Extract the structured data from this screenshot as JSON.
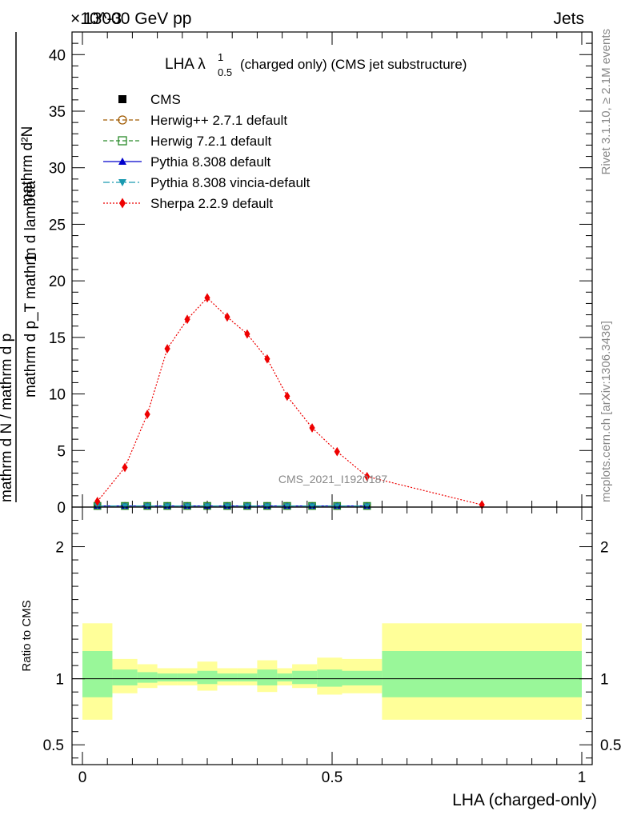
{
  "header": {
    "left": "13000 GeV pp",
    "right": "Jets",
    "exponent": "×10^-3"
  },
  "side_labels": {
    "rivet": "Rivet 3.1.10, ≥ 2.1M events",
    "mcplots": "mcplots.cern.ch [arXiv:1306.3436]"
  },
  "chart_data": {
    "type": "line",
    "title": "LHA λ^1_0.5 (charged only) (CMS jet substructure)",
    "title_parts": {
      "main": "LHA λ",
      "sup": "1",
      "sub": "0.5",
      "rest": "(charged only) (CMS jet substructure)"
    },
    "watermark": "CMS_2021_I1920187",
    "xlabel": "LHA (charged-only)",
    "ylabel_parts": {
      "one": "1",
      "den": "mathrm d N / mathrm d p",
      "num_right": "mathrm d²N",
      "den_right": "mathrm d p_T mathrm d lambda"
    },
    "ratio_ylabel": "Ratio to CMS",
    "xlim": [
      0,
      1
    ],
    "ylim": [
      0,
      42
    ],
    "y_scale_exponent": -3,
    "y_ticks": [
      0,
      5,
      10,
      15,
      20,
      25,
      30,
      35,
      40
    ],
    "x_ticks": [
      0,
      0.5,
      1
    ],
    "x_tick_labels": [
      "0",
      "0.5",
      "1"
    ],
    "ratio_ylim": [
      0.35,
      2.3
    ],
    "ratio_ticks": [
      0.5,
      1,
      2
    ],
    "ratio_tick_labels": [
      "0.5",
      "1",
      "2"
    ],
    "legend_placement": "top-left",
    "x_edges": [
      0.0,
      0.06,
      0.11,
      0.15,
      0.19,
      0.23,
      0.27,
      0.31,
      0.35,
      0.39,
      0.42,
      0.47,
      0.52,
      0.6,
      1.0
    ],
    "series": [
      {
        "name": "CMS",
        "color": "#000000",
        "marker": "square-filled",
        "line": "none",
        "x": [
          0.03,
          0.085,
          0.13,
          0.17,
          0.21,
          0.25,
          0.29,
          0.33,
          0.37,
          0.41,
          0.46,
          0.51,
          0.57
        ],
        "y": [
          0.1,
          0.1,
          0.1,
          0.1,
          0.1,
          0.1,
          0.1,
          0.1,
          0.1,
          0.1,
          0.1,
          0.1,
          0.1
        ]
      },
      {
        "name": "Herwig++ 2.7.1 default",
        "color": "#a05a00",
        "marker": "circle-open",
        "line": "dashed",
        "x": [
          0.03,
          0.085,
          0.13,
          0.17,
          0.21,
          0.25,
          0.29,
          0.33,
          0.37,
          0.41,
          0.46,
          0.51,
          0.57
        ],
        "y": [
          0.1,
          0.1,
          0.1,
          0.1,
          0.1,
          0.1,
          0.1,
          0.1,
          0.1,
          0.1,
          0.1,
          0.1,
          0.1
        ]
      },
      {
        "name": "Herwig 7.2.1 default",
        "color": "#2a8a2a",
        "marker": "square-open",
        "line": "dashed",
        "x": [
          0.03,
          0.085,
          0.13,
          0.17,
          0.21,
          0.25,
          0.29,
          0.33,
          0.37,
          0.41,
          0.46,
          0.51,
          0.57
        ],
        "y": [
          0.1,
          0.1,
          0.1,
          0.1,
          0.1,
          0.1,
          0.1,
          0.1,
          0.1,
          0.1,
          0.1,
          0.1,
          0.1
        ]
      },
      {
        "name": "Pythia 8.308 default",
        "color": "#0000cc",
        "marker": "triangle-up",
        "line": "solid",
        "x": [
          0.03,
          0.085,
          0.13,
          0.17,
          0.21,
          0.25,
          0.29,
          0.33,
          0.37,
          0.41,
          0.46,
          0.51,
          0.57
        ],
        "y": [
          0.1,
          0.1,
          0.1,
          0.1,
          0.1,
          0.1,
          0.1,
          0.1,
          0.1,
          0.1,
          0.1,
          0.1,
          0.1
        ]
      },
      {
        "name": "Pythia 8.308 vincia-default",
        "color": "#1a9ab0",
        "marker": "triangle-down",
        "line": "dashdot",
        "x": [
          0.03,
          0.085,
          0.13,
          0.17,
          0.21,
          0.25,
          0.29,
          0.33,
          0.37,
          0.41,
          0.46,
          0.51,
          0.57
        ],
        "y": [
          0.1,
          0.1,
          0.1,
          0.1,
          0.1,
          0.1,
          0.1,
          0.1,
          0.1,
          0.1,
          0.1,
          0.1,
          0.1
        ]
      },
      {
        "name": "Sherpa 2.2.9 default",
        "color": "#ee0000",
        "marker": "diamond",
        "line": "dotted",
        "x": [
          0.03,
          0.085,
          0.13,
          0.17,
          0.21,
          0.25,
          0.29,
          0.33,
          0.37,
          0.41,
          0.46,
          0.51,
          0.57,
          0.8
        ],
        "y": [
          0.5,
          3.5,
          8.2,
          14.0,
          16.6,
          18.5,
          16.8,
          15.3,
          13.1,
          9.8,
          7.0,
          4.9,
          2.7,
          0.2
        ]
      }
    ],
    "ratio_bands": {
      "green_low": [
        0.86,
        0.95,
        0.97,
        0.98,
        0.98,
        0.96,
        0.98,
        0.98,
        0.95,
        0.98,
        0.96,
        0.94,
        0.95,
        0.86
      ],
      "green_high": [
        1.21,
        1.07,
        1.05,
        1.04,
        1.04,
        1.06,
        1.04,
        1.04,
        1.07,
        1.04,
        1.06,
        1.07,
        1.06,
        1.21
      ],
      "yellow_low": [
        0.69,
        0.89,
        0.93,
        0.95,
        0.95,
        0.91,
        0.95,
        0.95,
        0.9,
        0.95,
        0.93,
        0.88,
        0.89,
        0.69
      ],
      "yellow_high": [
        1.42,
        1.15,
        1.11,
        1.08,
        1.08,
        1.13,
        1.08,
        1.08,
        1.14,
        1.08,
        1.11,
        1.16,
        1.15,
        1.42
      ]
    }
  },
  "colors": {
    "band_green": "#99f799",
    "band_yellow": "#ffff99",
    "watermark": "#888888",
    "side_text": "#888888"
  }
}
